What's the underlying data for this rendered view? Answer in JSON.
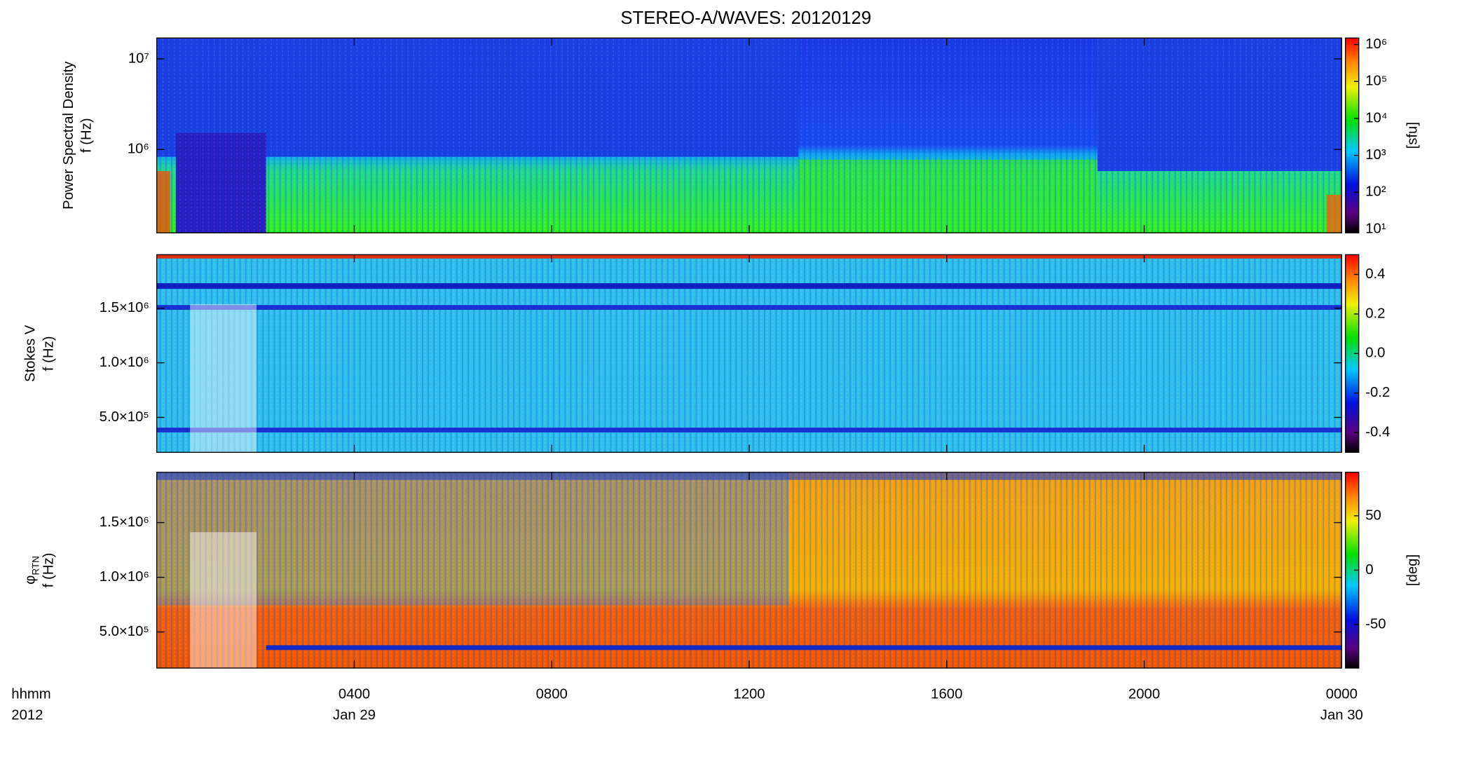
{
  "chart_data": [
    {
      "type": "heatmap",
      "title": "STEREO-A/WAVES: 20120129",
      "ylabel": [
        "Power Spectral Density",
        "f (Hz)"
      ],
      "ylog": true,
      "ylim": [
        120000,
        17000000
      ],
      "yticks": [
        {
          "value": 1000000,
          "label": "10⁶"
        },
        {
          "value": 10000000,
          "label": "10⁷"
        }
      ],
      "colorbar": {
        "label": "[sfu]",
        "log": true,
        "lim": [
          8,
          1500000
        ],
        "ticks": [
          {
            "value": 10,
            "label": "10¹"
          },
          {
            "value": 100,
            "label": "10²"
          },
          {
            "value": 1000,
            "label": "10³"
          },
          {
            "value": 10000,
            "label": "10⁴"
          },
          {
            "value": 100000,
            "label": "10⁵"
          },
          {
            "value": 1000000,
            "label": "10⁶"
          }
        ]
      }
    },
    {
      "type": "heatmap",
      "ylabel": [
        "Stokes V",
        "f (Hz)"
      ],
      "ylog": false,
      "ylim": [
        180000,
        1990000
      ],
      "yticks": [
        {
          "value": 500000,
          "label": "5.0×10⁵"
        },
        {
          "value": 1000000,
          "label": "1.0×10⁶"
        },
        {
          "value": 1500000,
          "label": "1.5×10⁶"
        }
      ],
      "colorbar": {
        "log": false,
        "lim": [
          -0.5,
          0.5
        ],
        "ticks": [
          -0.4,
          -0.2,
          {
            "value": 0,
            "label": "0.0"
          },
          0.2,
          0.4
        ]
      }
    },
    {
      "type": "heatmap",
      "ylabel": [
        "φ",
        "f (Hz)"
      ],
      "ylabel_sub": "RTN",
      "ylog": false,
      "ylim": [
        170000,
        1960000
      ],
      "yticks": [
        {
          "value": 500000,
          "label": "5.0×10⁵"
        },
        {
          "value": 1000000,
          "label": "1.0×10⁶"
        },
        {
          "value": 1500000,
          "label": "1.5×10⁶"
        }
      ],
      "colorbar": {
        "label": "[deg]",
        "log": false,
        "lim": [
          -90,
          90
        ],
        "ticks": [
          -50,
          0,
          50
        ]
      },
      "xlabel": [
        "hhmm",
        "2012"
      ],
      "xlim": [
        0,
        24
      ],
      "xticks": [
        {
          "value": 4,
          "label": "0400"
        },
        {
          "value": 8,
          "label": "0800"
        },
        {
          "value": 12,
          "label": "1200"
        },
        {
          "value": 16,
          "label": "1600"
        },
        {
          "value": 20,
          "label": "2000"
        },
        {
          "value": 24,
          "label": "0000"
        }
      ],
      "date_labels": [
        {
          "value": 4,
          "label": "Jan 29"
        },
        {
          "value": 24,
          "label": "Jan 30"
        }
      ]
    }
  ]
}
